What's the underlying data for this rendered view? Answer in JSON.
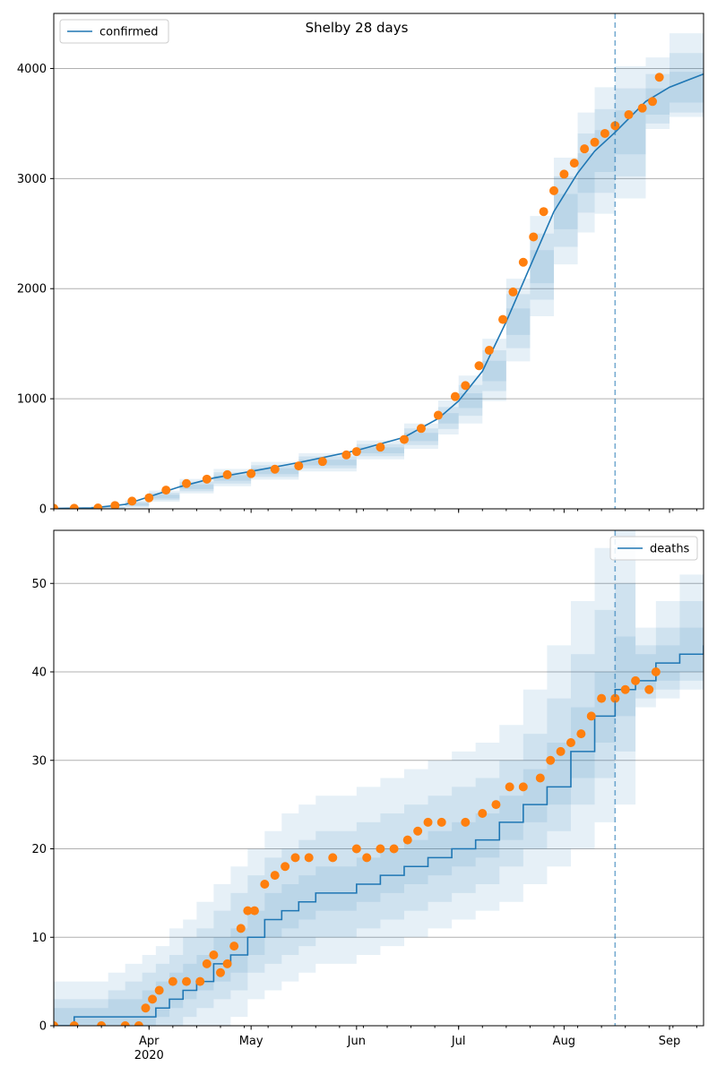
{
  "figure_title": "Shelby 28 days",
  "colors": {
    "model_line": "#1f77b4",
    "band": "#1f77b4",
    "observed": "#ff7f0e",
    "grid": "#b0b0b0",
    "forecast_line": "#1f77b4"
  },
  "x_axis": {
    "ticks": [
      {
        "date": "2020-04-01",
        "label": "Apr",
        "sublabel": "2020"
      },
      {
        "date": "2020-05-01",
        "label": "May",
        "sublabel": ""
      },
      {
        "date": "2020-06-01",
        "label": "Jun",
        "sublabel": ""
      },
      {
        "date": "2020-07-01",
        "label": "Jul",
        "sublabel": ""
      },
      {
        "date": "2020-08-01",
        "label": "Aug",
        "sublabel": ""
      },
      {
        "date": "2020-09-01",
        "label": "Sep",
        "sublabel": ""
      }
    ],
    "xlim": [
      "2020-03-04",
      "2020-09-11"
    ],
    "minor_ticks": "weekly"
  },
  "forecast_start": "2020-08-16",
  "chart_data": [
    {
      "type": "line",
      "legend": "confirmed",
      "legend_position": "top-left",
      "grid": "horizontal",
      "ylim": [
        0,
        4500
      ],
      "yticks": [
        0,
        1000,
        2000,
        3000,
        4000
      ],
      "model": {
        "x": [
          "2020-03-04",
          "2020-03-15",
          "2020-03-25",
          "2020-04-01",
          "2020-04-10",
          "2020-04-20",
          "2020-05-01",
          "2020-05-15",
          "2020-06-01",
          "2020-06-15",
          "2020-06-25",
          "2020-07-01",
          "2020-07-08",
          "2020-07-15",
          "2020-07-22",
          "2020-07-29",
          "2020-08-05",
          "2020-08-10",
          "2020-08-16",
          "2020-08-25",
          "2020-09-01",
          "2020-09-11"
        ],
        "mid": [
          3,
          8,
          40,
          110,
          200,
          280,
          340,
          420,
          530,
          650,
          820,
          980,
          1250,
          1700,
          2200,
          2700,
          3050,
          3250,
          3420,
          3700,
          3830,
          3950
        ],
        "inner": [
          {
            "lo": [
              0,
              4,
              30,
              95,
              180,
              255,
              315,
              395,
              505,
              615,
              775,
              915,
              1160,
              1580,
              2050,
              2540,
              2870,
              3060,
              3220,
              3580,
              3690,
              3760
            ],
            "hi": [
              6,
              13,
              52,
              128,
              222,
              305,
              368,
              447,
              558,
              690,
              870,
              1050,
              1345,
              1820,
              2350,
              2860,
              3230,
              3440,
              3620,
              3820,
              3970,
              4140
            ]
          },
          {
            "lo": [
              0,
              0,
              20,
              80,
              160,
              230,
              290,
              368,
              478,
              580,
              725,
              845,
              1070,
              1460,
              1900,
              2380,
              2690,
              2870,
              3020,
              3500,
              3600,
              3680
            ],
            "hi": [
              10,
              18,
              64,
              146,
              246,
              332,
              396,
              476,
              588,
              730,
              925,
              1125,
              1440,
              1950,
              2500,
              3020,
              3410,
              3630,
              3820,
              3950,
              4140,
              4330
            ]
          },
          {
            "lo": [
              0,
              0,
              10,
              65,
              140,
              205,
              265,
              340,
              450,
              545,
              675,
              775,
              980,
              1340,
              1750,
              2220,
              2510,
              2680,
              2820,
              3450,
              3560,
              3640
            ],
            "hi": [
              15,
              24,
              78,
              166,
              272,
              362,
              426,
              506,
              620,
              775,
              985,
              1210,
              1545,
              2090,
              2660,
              3190,
              3600,
              3830,
              4020,
              4100,
              4320,
              4520
            ]
          }
        ]
      },
      "observed": {
        "x": [
          "2020-03-04",
          "2020-03-10",
          "2020-03-17",
          "2020-03-22",
          "2020-03-27",
          "2020-04-01",
          "2020-04-06",
          "2020-04-12",
          "2020-04-18",
          "2020-04-24",
          "2020-05-01",
          "2020-05-08",
          "2020-05-15",
          "2020-05-22",
          "2020-05-29",
          "2020-06-01",
          "2020-06-08",
          "2020-06-15",
          "2020-06-20",
          "2020-06-25",
          "2020-06-30",
          "2020-07-03",
          "2020-07-07",
          "2020-07-10",
          "2020-07-14",
          "2020-07-17",
          "2020-07-20",
          "2020-07-23",
          "2020-07-26",
          "2020-07-29",
          "2020-08-01",
          "2020-08-04",
          "2020-08-07",
          "2020-08-10",
          "2020-08-13",
          "2020-08-16",
          "2020-08-20",
          "2020-08-24",
          "2020-08-27",
          "2020-08-29"
        ],
        "y": [
          5,
          5,
          8,
          30,
          70,
          100,
          170,
          230,
          270,
          310,
          320,
          360,
          390,
          430,
          490,
          520,
          560,
          630,
          730,
          850,
          1020,
          1120,
          1300,
          1440,
          1720,
          1970,
          2240,
          2470,
          2700,
          2890,
          3040,
          3140,
          3270,
          3330,
          3410,
          3480,
          3580,
          3640,
          3700,
          3920
        ]
      }
    },
    {
      "type": "line",
      "legend": "deaths",
      "legend_position": "top-right",
      "grid": "horizontal",
      "ylim": [
        0,
        56
      ],
      "yticks": [
        0,
        10,
        20,
        30,
        40,
        50
      ],
      "model": {
        "x": [
          "2020-03-04",
          "2020-03-10",
          "2020-03-15",
          "2020-03-20",
          "2020-03-25",
          "2020-03-30",
          "2020-04-03",
          "2020-04-07",
          "2020-04-11",
          "2020-04-15",
          "2020-04-20",
          "2020-04-25",
          "2020-04-30",
          "2020-05-05",
          "2020-05-10",
          "2020-05-15",
          "2020-05-20",
          "2020-05-25",
          "2020-06-01",
          "2020-06-08",
          "2020-06-15",
          "2020-06-22",
          "2020-06-29",
          "2020-07-06",
          "2020-07-13",
          "2020-07-20",
          "2020-07-27",
          "2020-08-03",
          "2020-08-10",
          "2020-08-16",
          "2020-08-22",
          "2020-08-28",
          "2020-09-04",
          "2020-09-11"
        ],
        "mid": [
          0,
          1,
          1,
          1,
          1,
          1,
          2,
          3,
          4,
          5,
          7,
          8,
          10,
          12,
          13,
          14,
          15,
          15,
          16,
          17,
          18,
          19,
          20,
          21,
          23,
          25,
          27,
          31,
          35,
          38,
          39,
          41,
          42,
          43
        ],
        "inner": [
          {
            "lo": [
              0,
              0,
              0,
              0,
              0,
              0,
              1,
              2,
              3,
              4,
              5,
              6,
              8,
              10,
              11,
              12,
              13,
              13,
              14,
              15,
              16,
              17,
              18,
              19,
              21,
              23,
              25,
              28,
              32,
              35,
              38,
              39,
              40,
              41
            ],
            "hi": [
              2,
              2,
              2,
              3,
              3,
              4,
              5,
              6,
              7,
              8,
              10,
              11,
              13,
              15,
              16,
              17,
              18,
              18,
              19,
              20,
              21,
              22,
              23,
              24,
              26,
              29,
              32,
              36,
              40,
              44,
              42,
              43,
              45,
              45
            ]
          },
          {
            "lo": [
              0,
              0,
              0,
              0,
              0,
              0,
              0,
              0,
              1,
              2,
              3,
              4,
              6,
              7,
              8,
              9,
              10,
              10,
              11,
              12,
              13,
              14,
              15,
              16,
              18,
              20,
              22,
              25,
              28,
              31,
              37,
              38,
              39,
              40
            ],
            "hi": [
              3,
              3,
              3,
              4,
              5,
              6,
              7,
              8,
              10,
              11,
              13,
              15,
              17,
              19,
              20,
              21,
              22,
              22,
              23,
              24,
              25,
              26,
              27,
              28,
              30,
              33,
              37,
              42,
              47,
              50,
              43,
              45,
              48,
              49
            ]
          },
          {
            "lo": [
              0,
              0,
              0,
              0,
              0,
              0,
              0,
              0,
              0,
              0,
              0,
              1,
              3,
              4,
              5,
              6,
              7,
              7,
              8,
              9,
              10,
              11,
              12,
              13,
              14,
              16,
              18,
              20,
              23,
              25,
              36,
              37,
              38,
              38
            ],
            "hi": [
              5,
              5,
              5,
              6,
              7,
              8,
              9,
              11,
              12,
              14,
              16,
              18,
              20,
              22,
              24,
              25,
              26,
              26,
              27,
              28,
              29,
              30,
              31,
              32,
              34,
              38,
              43,
              48,
              54,
              58,
              45,
              48,
              51,
              52
            ]
          }
        ]
      },
      "observed": {
        "x": [
          "2020-03-04",
          "2020-03-10",
          "2020-03-18",
          "2020-03-25",
          "2020-03-29",
          "2020-03-31",
          "2020-04-02",
          "2020-04-04",
          "2020-04-08",
          "2020-04-12",
          "2020-04-16",
          "2020-04-18",
          "2020-04-20",
          "2020-04-22",
          "2020-04-24",
          "2020-04-26",
          "2020-04-28",
          "2020-04-30",
          "2020-05-02",
          "2020-05-05",
          "2020-05-08",
          "2020-05-11",
          "2020-05-14",
          "2020-05-18",
          "2020-05-25",
          "2020-06-01",
          "2020-06-04",
          "2020-06-08",
          "2020-06-12",
          "2020-06-16",
          "2020-06-19",
          "2020-06-22",
          "2020-06-26",
          "2020-07-03",
          "2020-07-08",
          "2020-07-12",
          "2020-07-16",
          "2020-07-20",
          "2020-07-25",
          "2020-07-28",
          "2020-07-31",
          "2020-08-03",
          "2020-08-06",
          "2020-08-09",
          "2020-08-12",
          "2020-08-16",
          "2020-08-19",
          "2020-08-22",
          "2020-08-26",
          "2020-08-28"
        ],
        "y": [
          0,
          0,
          0,
          0,
          0,
          2,
          3,
          4,
          5,
          5,
          5,
          7,
          8,
          6,
          7,
          9,
          11,
          13,
          13,
          16,
          17,
          18,
          19,
          19,
          19,
          20,
          19,
          20,
          20,
          21,
          22,
          23,
          23,
          23,
          24,
          25,
          27,
          27,
          28,
          30,
          31,
          32,
          33,
          35,
          37,
          37,
          38,
          39,
          38,
          40
        ]
      }
    }
  ]
}
